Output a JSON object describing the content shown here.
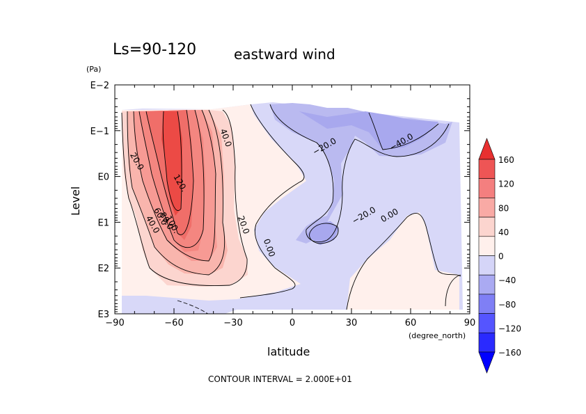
{
  "chart_data": {
    "type": "heatmap",
    "title": "eastward wind",
    "subtitle": "Ls=90-120",
    "xlabel": "latitude",
    "x_unit": "(degree_north)",
    "ylabel": "Level",
    "y_unit": "(Pa)",
    "footer": "CONTOUR INTERVAL = 2.000E+01",
    "xlim": [
      -90,
      90
    ],
    "x_ticks": [
      -90,
      -60,
      -30,
      0,
      30,
      60,
      90
    ],
    "x_tick_labels": [
      "−90",
      "−60",
      "−30",
      "0",
      "30",
      "60",
      "90"
    ],
    "y_scale": "log",
    "y_direction": "pressure-decreasing-upward",
    "ylim": [
      1000,
      0.01
    ],
    "y_ticks": [
      1000,
      100,
      10,
      1,
      0.1,
      0.01
    ],
    "y_tick_labels": [
      "E3",
      "E2",
      "E1",
      "E0",
      "E−1",
      "E−2"
    ],
    "contour_interval": 20,
    "colorbar": {
      "levels": [
        -160,
        -120,
        -80,
        -40,
        0,
        40,
        80,
        120,
        160
      ],
      "tick_labels": [
        "−160",
        "−120",
        "−80",
        "−40",
        "0",
        "40",
        "80",
        "120",
        "160"
      ],
      "colors": [
        "#0000ff",
        "#2a2aff",
        "#5555ff",
        "#7f7ff5",
        "#aaaaf2",
        "#d5d5f8",
        "#fff0ec",
        "#fcd5cf",
        "#f9aaa5",
        "#f47f7f",
        "#ee5555",
        "#e83030"
      ]
    },
    "contour_labels": [
      {
        "text": "20.0",
        "lat": -80,
        "level": 0.5
      },
      {
        "text": "120.",
        "lat": -58,
        "level": 1.5
      },
      {
        "text": "100.",
        "lat": -62,
        "level": 12
      },
      {
        "text": "80.0",
        "lat": -65,
        "level": 10
      },
      {
        "text": "60.0",
        "lat": -68,
        "level": 8
      },
      {
        "text": "40.0",
        "lat": -72,
        "level": 12
      },
      {
        "text": "40.0",
        "lat": -35,
        "level": 0.15
      },
      {
        "text": "20.0",
        "lat": -26,
        "level": 12
      },
      {
        "text": "0.00",
        "lat": -13,
        "level": 38
      },
      {
        "text": "−20.0",
        "lat": 17,
        "level": 0.25
      },
      {
        "text": "−40.0",
        "lat": 56,
        "level": 0.2
      },
      {
        "text": "−20.0",
        "lat": 37,
        "level": 8
      },
      {
        "text": "0.00",
        "lat": 50,
        "level": 8
      }
    ]
  }
}
